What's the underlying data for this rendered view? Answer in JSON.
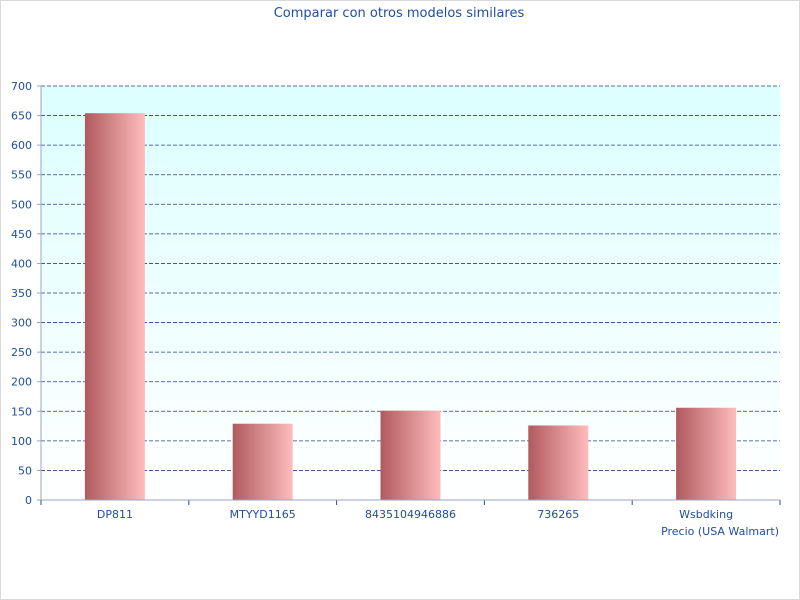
{
  "chart_data": {
    "type": "bar",
    "title": "Comparar con otros modelos similares",
    "xlabel": "Precio (USA Walmart)",
    "ylabel": "",
    "categories": [
      "DP811",
      "MTYYD1165",
      "8435104946886",
      "736265",
      "Wsbdking"
    ],
    "values": [
      654,
      129,
      151,
      126,
      156
    ],
    "ylim": [
      0,
      700
    ],
    "yticks": [
      0,
      50,
      100,
      150,
      200,
      250,
      300,
      350,
      400,
      450,
      500,
      550,
      600,
      650,
      700
    ],
    "grid": true,
    "legend": "none",
    "colors": {
      "plot_bg_top": "#dcffff",
      "plot_bg_bottom": "#ffffff",
      "grid": "#2a3f8f",
      "bar_dark": "#b05a5e",
      "bar_light": "#ffbcbc",
      "text": "#1f4fa0"
    }
  }
}
